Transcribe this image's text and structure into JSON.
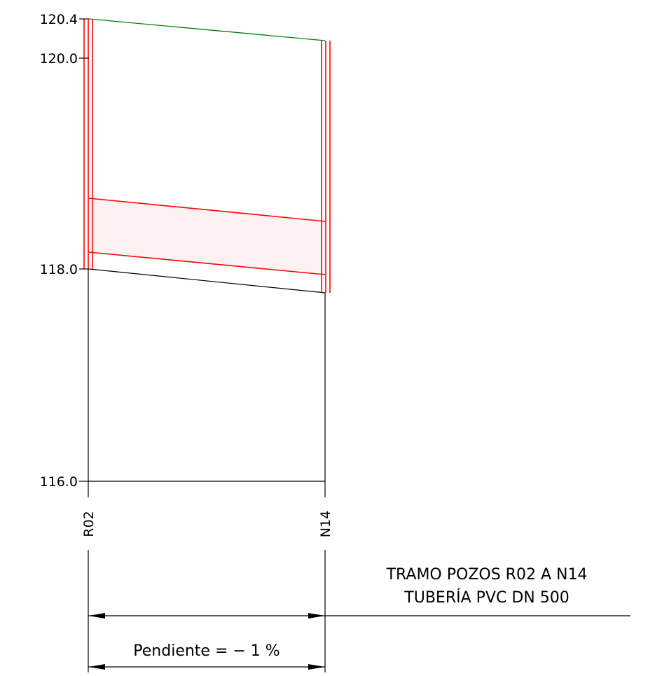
{
  "profile": {
    "elevation_labels": [
      "120.4",
      "120.0",
      "118.0",
      "116.0"
    ],
    "manhole_start": "R02",
    "manhole_end": "N14",
    "ground_elevation_start": 120.4,
    "ground_elevation_end": 120.2,
    "invert_elevation_start": 118.0,
    "invert_elevation_end": 117.8,
    "datum_elevation": 116.0
  },
  "note": {
    "line1": "TRAMO POZOS R02 A N14",
    "line2": "TUBERÍA PVC DN 500"
  },
  "slope": {
    "label": "Pendiente = − 1 %"
  },
  "colors": {
    "ground_line": "#008000",
    "pipe": "#ff0000",
    "pipe_fill": "#fdf1f1",
    "lines": "#000000"
  }
}
